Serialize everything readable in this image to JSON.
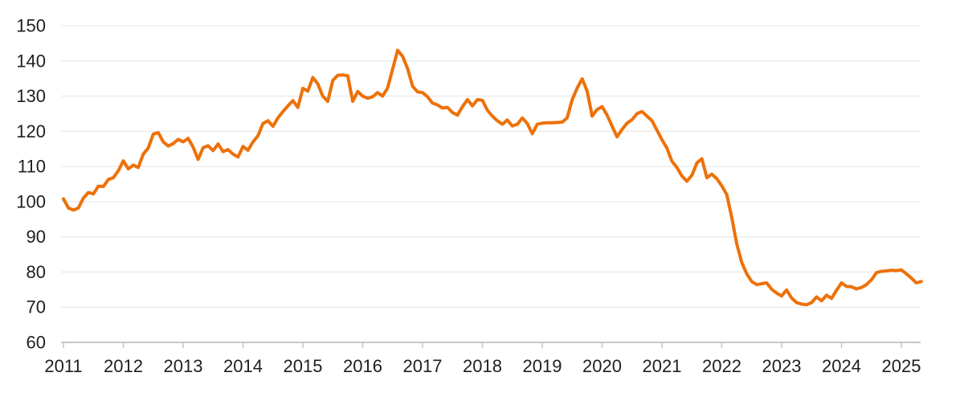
{
  "chart_data": {
    "type": "line",
    "title": "",
    "frequency": "monthly",
    "x_start": "2011-01",
    "x_end": "2025-05",
    "x_tick_labels": [
      "2011",
      "2012",
      "2013",
      "2014",
      "2015",
      "2016",
      "2017",
      "2018",
      "2019",
      "2020",
      "2021",
      "2022",
      "2023",
      "2024",
      "2025"
    ],
    "y_tick_labels": [
      "60",
      "70",
      "80",
      "90",
      "100",
      "110",
      "120",
      "130",
      "140",
      "150"
    ],
    "ylim": [
      60,
      150
    ],
    "grid": "horizontal",
    "legend": "none",
    "series": [
      {
        "name": "index-series",
        "color": "#ED7109",
        "values": [
          100.8,
          98.2,
          97.6,
          98.2,
          101.0,
          102.6,
          102.2,
          104.4,
          104.3,
          106.3,
          106.8,
          108.8,
          111.6,
          109.3,
          110.4,
          109.7,
          113.5,
          115.2,
          119.2,
          119.6,
          117.0,
          115.8,
          116.5,
          117.7,
          117.0,
          118.0,
          115.5,
          112.0,
          115.3,
          115.9,
          114.5,
          116.4,
          114.2,
          114.8,
          113.5,
          112.7,
          115.7,
          114.6,
          117.0,
          118.7,
          122.2,
          123.0,
          121.4,
          123.8,
          125.6,
          127.2,
          128.7,
          126.8,
          132.2,
          131.4,
          135.3,
          133.5,
          130.0,
          128.5,
          134.5,
          135.9,
          136.0,
          135.8,
          128.5,
          131.3,
          130.0,
          129.4,
          129.8,
          131.0,
          130.0,
          132.3,
          137.7,
          143.0,
          141.3,
          137.8,
          132.8,
          131.2,
          131.0,
          129.8,
          128.0,
          127.5,
          126.6,
          126.8,
          125.3,
          124.6,
          127.0,
          129.0,
          127.2,
          129.0,
          128.8,
          126.0,
          124.3,
          123.0,
          122.0,
          123.2,
          121.5,
          122.0,
          123.8,
          122.2,
          119.3,
          122.0,
          122.3,
          122.4,
          122.4,
          122.5,
          122.6,
          123.8,
          129.0,
          132.3,
          134.9,
          131.4,
          124.3,
          126.2,
          127.0,
          124.6,
          121.5,
          118.4,
          120.5,
          122.3,
          123.3,
          125.0,
          125.6,
          124.3,
          123.0,
          120.3,
          117.6,
          115.2,
          111.5,
          109.7,
          107.3,
          105.8,
          107.5,
          111.0,
          112.2,
          106.8,
          107.8,
          106.5,
          104.5,
          102.0,
          95.5,
          88.0,
          82.7,
          79.5,
          77.3,
          76.4,
          76.7,
          76.9,
          75.1,
          74.0,
          73.2,
          74.9,
          72.6,
          71.3,
          70.9,
          70.7,
          71.3,
          72.9,
          71.8,
          73.4,
          72.5,
          74.8,
          76.9,
          75.9,
          75.8,
          75.2,
          75.6,
          76.4,
          77.8,
          79.8,
          80.2,
          80.3,
          80.5,
          80.4,
          80.6,
          79.5,
          78.3,
          76.9,
          77.3
        ]
      }
    ]
  },
  "colors": {
    "line": "#ED7109",
    "gridline": "#EAEAEA",
    "axis": "#C6C6C6",
    "label": "#1F1F1F",
    "background": "#FFFFFF"
  }
}
